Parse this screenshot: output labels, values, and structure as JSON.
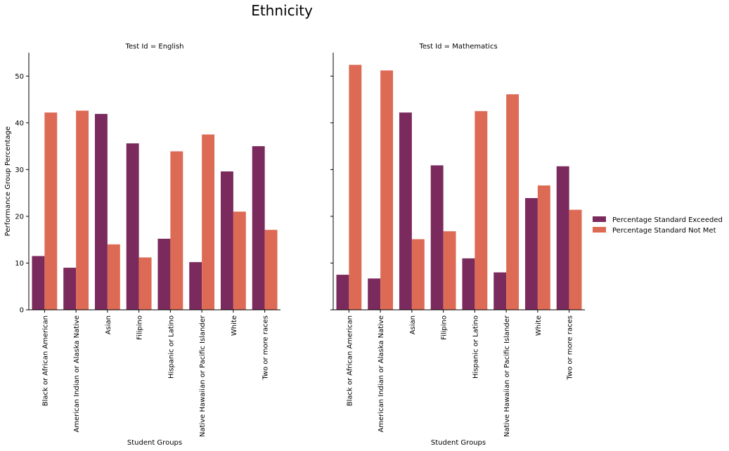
{
  "chart_data": {
    "type": "bar",
    "title": "Ethnicity",
    "ylabel": "Performance Group Percentage",
    "xlabel": "Student Groups",
    "ylim": [
      0,
      55
    ],
    "yticks": [
      0,
      10,
      20,
      30,
      40,
      50
    ],
    "grid": false,
    "legend_position": "right",
    "categories": [
      "Black or African American",
      "American Indian or Alaska Native",
      "Asian",
      "Filipino",
      "Hispanic or Latino",
      "Native Hawaiian or Pacific Islander",
      "White",
      "Two or more races"
    ],
    "series_meta": [
      {
        "name": "Percentage Standard Exceeded",
        "color": "#7a2a5c"
      },
      {
        "name": "Percentage Standard Not Met",
        "color": "#dd6a54"
      }
    ],
    "panels": [
      {
        "title": "Test Id = English",
        "series": [
          {
            "name": "Percentage Standard Exceeded",
            "values": [
              11.5,
              9.0,
              41.9,
              35.6,
              15.2,
              10.2,
              29.6,
              35.0
            ]
          },
          {
            "name": "Percentage Standard Not Met",
            "values": [
              42.2,
              42.6,
              14.0,
              11.2,
              33.9,
              37.5,
              21.0,
              17.1
            ]
          }
        ]
      },
      {
        "title": "Test Id = Mathematics",
        "series": [
          {
            "name": "Percentage Standard Exceeded",
            "values": [
              7.5,
              6.7,
              42.2,
              30.9,
              11.0,
              8.0,
              23.9,
              30.7
            ]
          },
          {
            "name": "Percentage Standard Not Met",
            "values": [
              52.4,
              51.2,
              15.1,
              16.8,
              42.5,
              46.1,
              26.6,
              21.4
            ]
          }
        ]
      }
    ]
  }
}
